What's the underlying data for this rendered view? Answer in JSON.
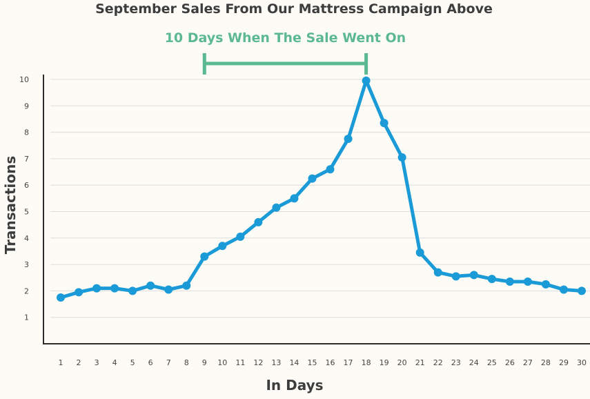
{
  "chart_data": {
    "type": "line",
    "title": "September Sales From Our Mattress Campaign Above",
    "xlabel": "In Days",
    "ylabel": "Transactions",
    "x": [
      1,
      2,
      3,
      4,
      5,
      6,
      7,
      8,
      9,
      10,
      11,
      12,
      13,
      14,
      15,
      16,
      17,
      18,
      19,
      20,
      21,
      22,
      23,
      24,
      25,
      26,
      27,
      28,
      29,
      30
    ],
    "series": [
      {
        "values": [
          1.75,
          1.95,
          2.1,
          2.1,
          2.0,
          2.2,
          2.05,
          2.2,
          3.3,
          3.7,
          4.05,
          4.6,
          5.15,
          5.5,
          6.25,
          6.6,
          7.75,
          9.95,
          8.35,
          7.05,
          3.45,
          2.7,
          2.55,
          2.6,
          2.45,
          2.35,
          2.35,
          2.25,
          2.05,
          2.0
        ]
      }
    ],
    "ylim": [
      0,
      10
    ],
    "yticks": [
      1,
      2,
      3,
      4,
      5,
      6,
      7,
      8,
      9,
      10
    ],
    "grid": true,
    "line_color": "#1a9ad6",
    "annotation": {
      "text": "10 Days When The Sale Went On",
      "x_start": 9,
      "x_end": 18,
      "color": "#5bb891"
    }
  }
}
